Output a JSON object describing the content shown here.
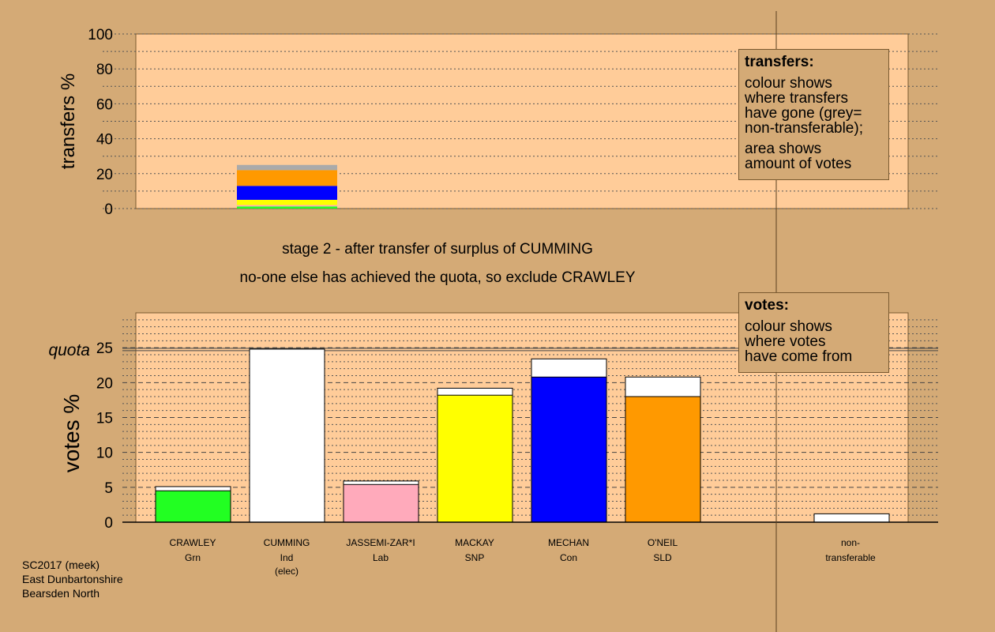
{
  "captions": {
    "stage": "stage 2 - after transfer of surplus of CUMMING",
    "action": "no-one else has achieved the quota, so exclude CRAWLEY"
  },
  "legend_transfers": {
    "title": "transfers:",
    "lines": [
      "colour shows",
      "where transfers",
      "have gone (grey=",
      "non-transferable);"
    ],
    "lines2": [
      "area shows",
      "amount of votes"
    ]
  },
  "legend_votes": {
    "title": "votes:",
    "lines": [
      "colour shows",
      "where votes",
      "have come from"
    ]
  },
  "footer": [
    "SC2017 (meek)",
    "East Dunbartonshire",
    "Bearsden North"
  ],
  "colors": {
    "background": "#d4aa76",
    "plot": "#ffcc99",
    "Grn": "#22ff22",
    "Ind": "#ffffff",
    "Lab": "#ffaabb",
    "SNP": "#ffff00",
    "Con": "#0000ff",
    "SLD": "#ff9900",
    "nontransferable": "#aaaaaa"
  },
  "chart_data": [
    {
      "type": "bar",
      "stacked": true,
      "title": "",
      "ylabel": "transfers %",
      "ylim": [
        0,
        100
      ],
      "yticks": [
        0,
        20,
        40,
        60,
        80,
        100
      ],
      "grid": "dotted",
      "column": "CUMMING",
      "segments": [
        {
          "party": "Grn",
          "value": 1.2
        },
        {
          "party": "Lab",
          "value": 0.8
        },
        {
          "party": "SNP",
          "value": 3.0
        },
        {
          "party": "Con",
          "value": 8.0
        },
        {
          "party": "SLD",
          "value": 9.0
        },
        {
          "party": "nontransferable",
          "value": 3.0
        }
      ]
    },
    {
      "type": "bar",
      "stacked": true,
      "title": "",
      "ylabel": "votes %",
      "ylim": [
        0,
        30
      ],
      "yticks": [
        0,
        5,
        10,
        15,
        20,
        25
      ],
      "quota": 24.8,
      "quota_label": "quota",
      "grid": "dashed",
      "candidates": [
        {
          "name": "CRAWLEY",
          "party": "Grn",
          "note": "",
          "first": 4.5,
          "transfer": 0.6
        },
        {
          "name": "CUMMING",
          "party": "Ind",
          "note": "(elec)",
          "first": 24.8,
          "transfer": 0
        },
        {
          "name": "JASSEMI-ZAR*I",
          "party": "Lab",
          "note": "",
          "first": 5.4,
          "transfer": 0.5
        },
        {
          "name": "MACKAY",
          "party": "SNP",
          "note": "",
          "first": 18.2,
          "transfer": 1.0
        },
        {
          "name": "MECHAN",
          "party": "Con",
          "note": "",
          "first": 20.8,
          "transfer": 2.6
        },
        {
          "name": "O'NEIL",
          "party": "SLD",
          "note": "",
          "first": 18.0,
          "transfer": 2.8
        }
      ],
      "nontransferable": {
        "label1": "non-",
        "label2": "transferable",
        "value": 1.2
      }
    }
  ]
}
